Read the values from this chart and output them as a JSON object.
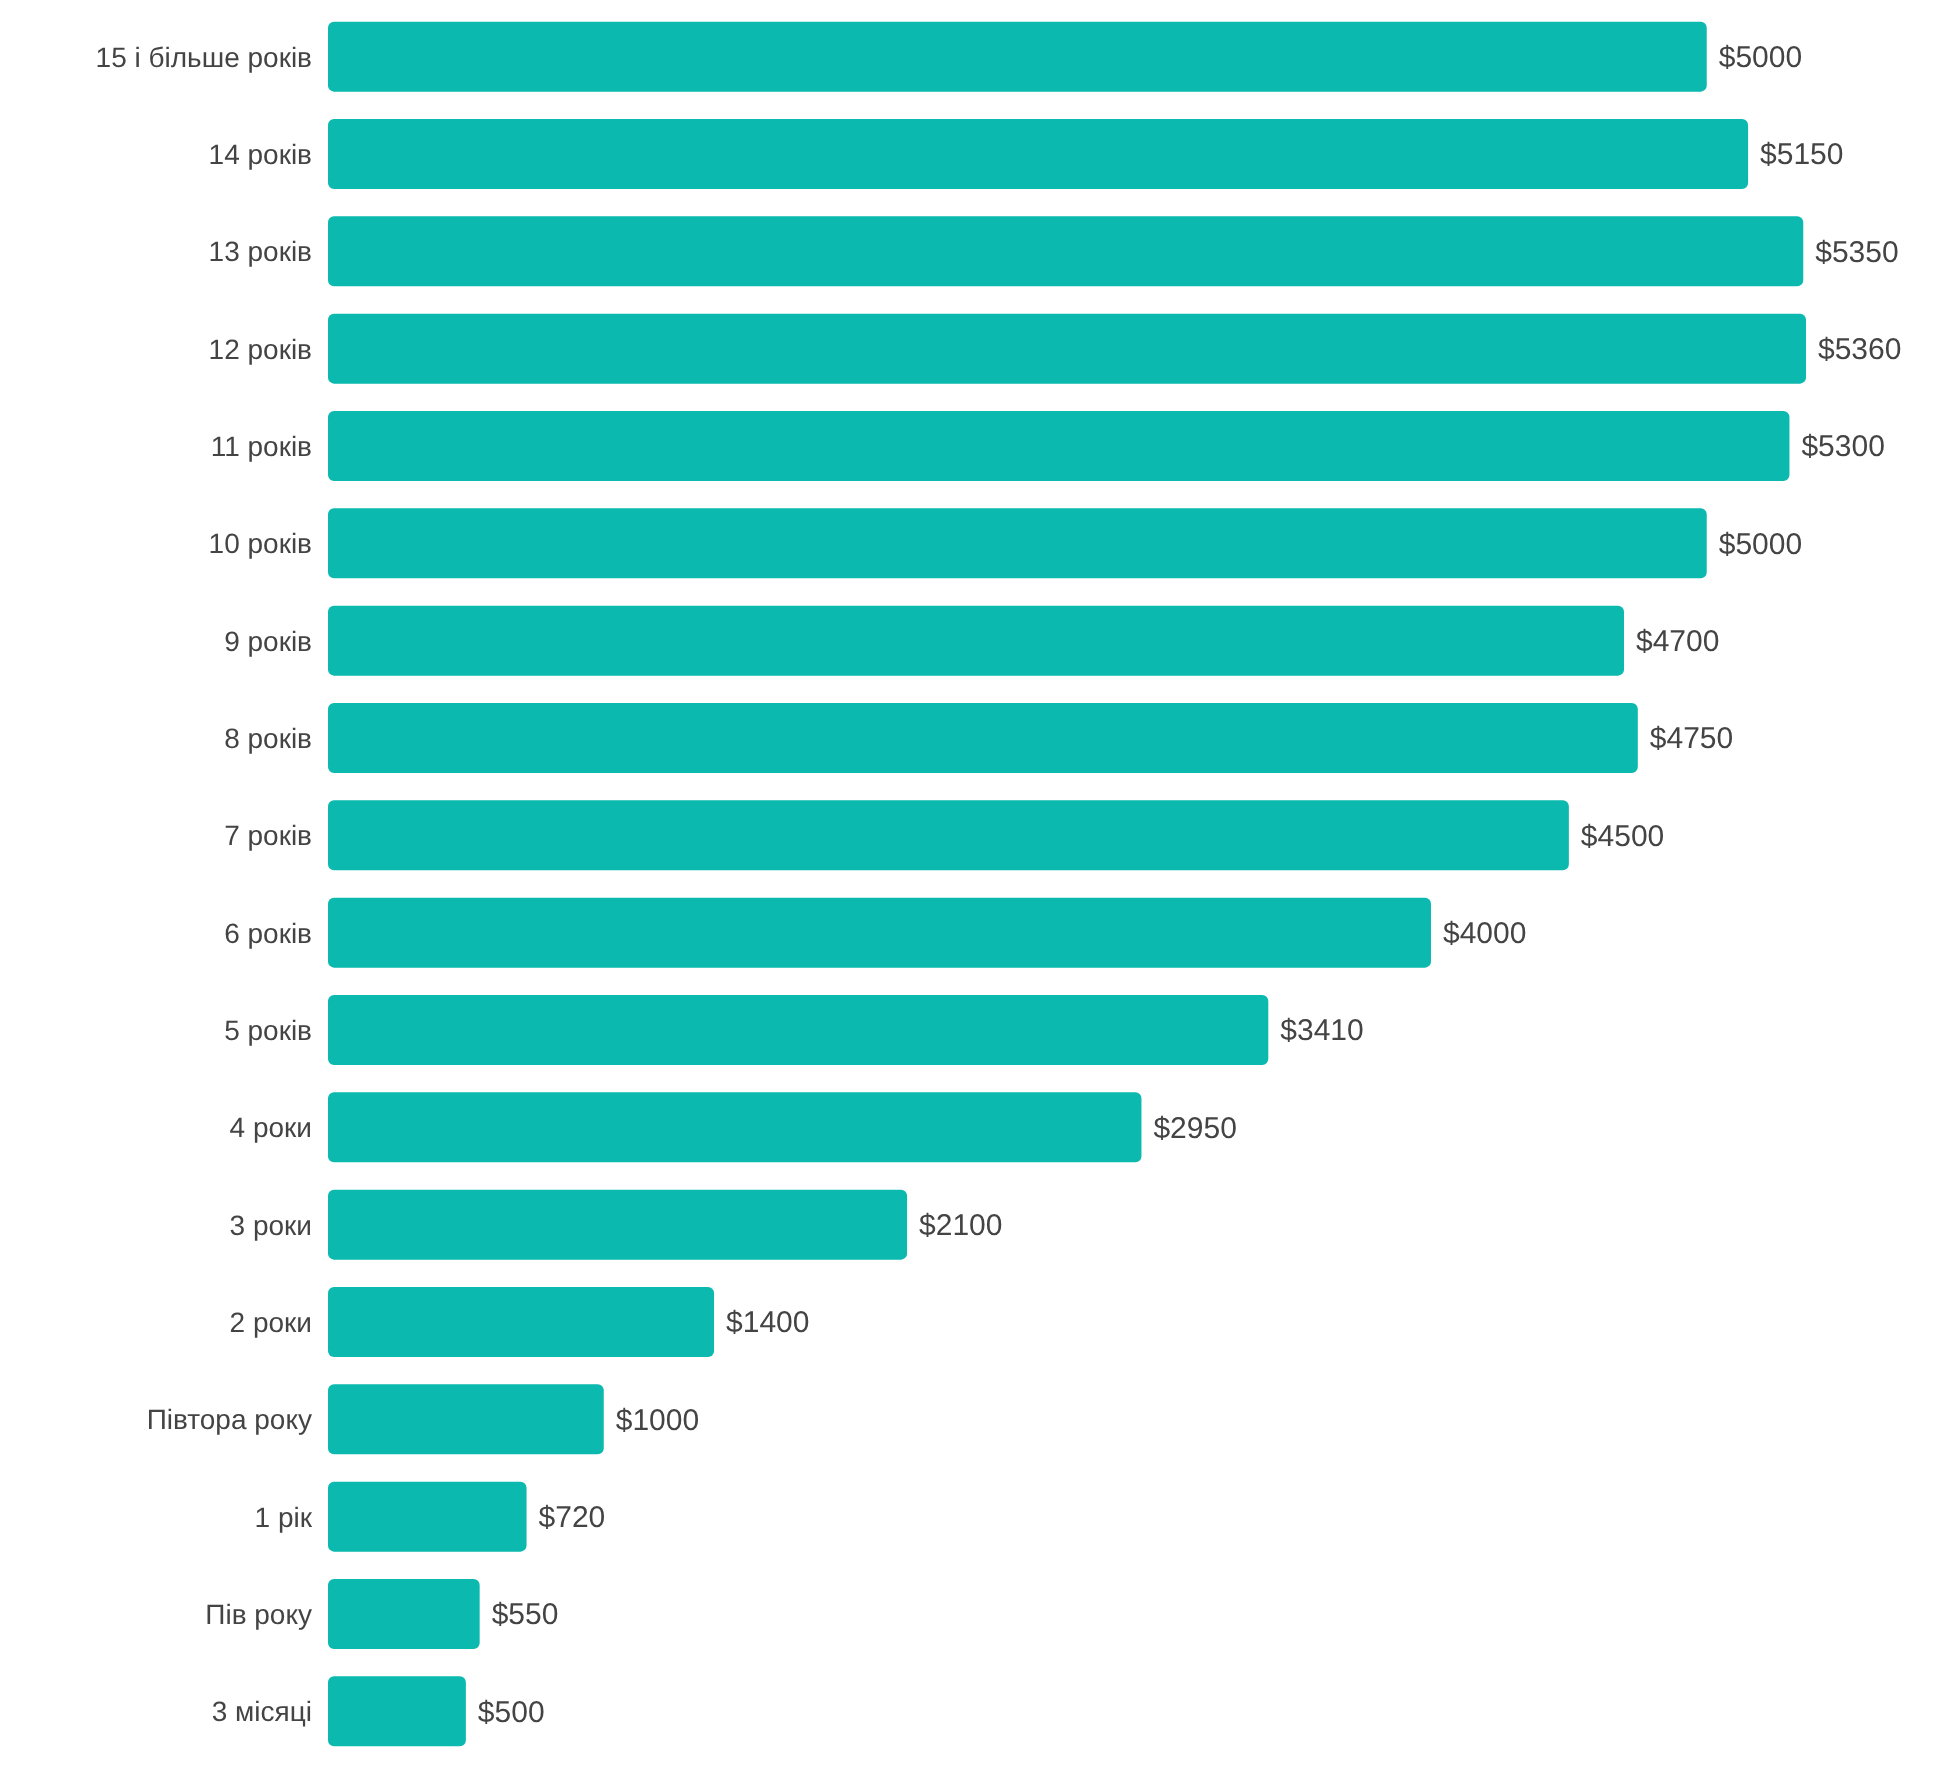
{
  "chart_data": {
    "type": "bar",
    "orientation": "horizontal",
    "color": "#0bb9ae",
    "categories": [
      "15 і більше років",
      "14 років",
      "13 років",
      "12 років",
      "11 років",
      "10 років",
      "9 років",
      "8 років",
      "7 років",
      "6 років",
      "5 років",
      "4 роки",
      "3 роки",
      "2 роки",
      "Півтора року",
      "1 рік",
      "Пів року",
      "3 місяці"
    ],
    "values": [
      5000,
      5150,
      5350,
      5360,
      5300,
      5000,
      4700,
      4750,
      4500,
      4000,
      3410,
      2950,
      2100,
      1400,
      1000,
      720,
      550,
      500
    ],
    "value_labels": [
      "$5000",
      "$5150",
      "$5350",
      "$5360",
      "$5300",
      "$5000",
      "$4700",
      "$4750",
      "$4500",
      "$4000",
      "$3410",
      "$2950",
      "$2100",
      "$1400",
      "$1000",
      "$720",
      "$550",
      "$500"
    ]
  }
}
